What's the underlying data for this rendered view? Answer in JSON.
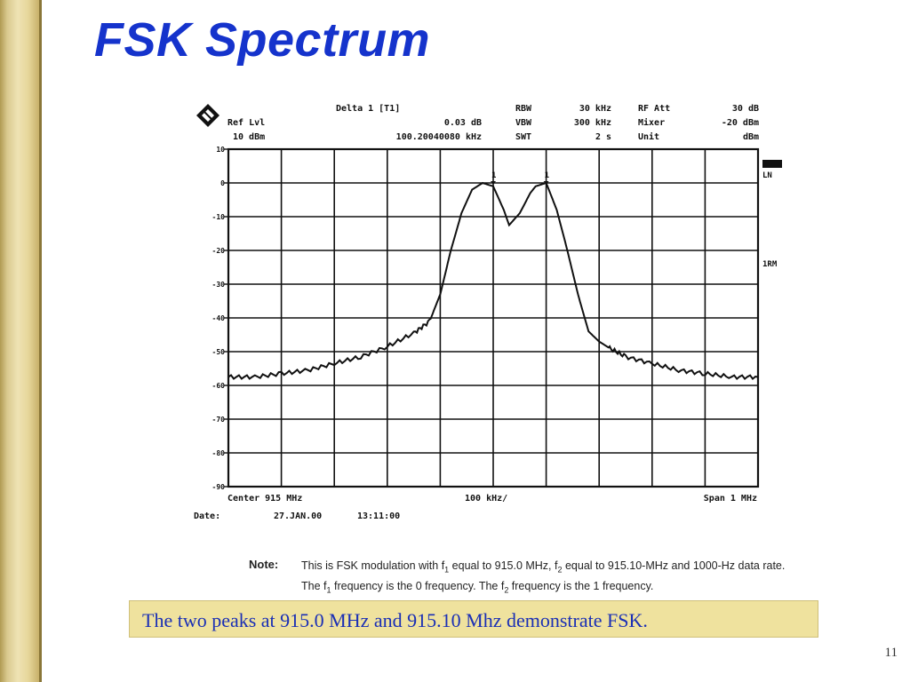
{
  "slide": {
    "title": "FSK Spectrum",
    "page_number": "11",
    "caption": "The two peaks at 915.0 MHz and 915.10 Mhz demonstrate FSK.",
    "colors": {
      "title": "#1533cc",
      "caption_text": "#1a2fb5",
      "caption_bg": "#efe29e",
      "side_bar": "#d9c98e"
    }
  },
  "analyzer": {
    "logo_icon": "rohde-schwarz-logo-icon",
    "header": {
      "marker_title": "Delta 1 [T1]",
      "marker_level": "0.03 dB",
      "marker_freq": "100.20040080 kHz",
      "ref_lvl_label": "Ref Lvl",
      "ref_lvl_value": "10 dBm",
      "rbw_label": "RBW",
      "rbw_value": "30 kHz",
      "vbw_label": "VBW",
      "vbw_value": "300 kHz",
      "swt_label": "SWT",
      "swt_value": "2 s",
      "rf_att_label": "RF Att",
      "rf_att_value": "30 dB",
      "mixer_label": "Mixer",
      "mixer_value": "-20 dBm",
      "unit_label": "Unit",
      "unit_value": "dBm"
    },
    "side_labels": {
      "ln": "LN",
      "trace": "1RM"
    },
    "footer": {
      "center": "Center 915 MHz",
      "div": "100 kHz/",
      "span": "Span 1 MHz",
      "date_label": "Date:",
      "date_value": "27.JAN.00",
      "time_value": "13:11:00"
    },
    "marker_labels": [
      "1",
      "1"
    ]
  },
  "note": {
    "label": "Note:",
    "line1_a": "This is FSK modulation with f",
    "line1_sub1": "1",
    "line1_b": " equal to 915.0 MHz, f",
    "line1_sub2": "2",
    "line1_c": " equal to 915.10-MHz and 1000-Hz data rate.",
    "line2_a": "The f",
    "line2_sub1": "1",
    "line2_b": " frequency is the 0 frequency. The f",
    "line2_sub2": "2",
    "line2_c": " frequency is the 1 frequency."
  },
  "chart_data": {
    "type": "line",
    "xlim": [
      914.5,
      915.5
    ],
    "ylim": [
      -90,
      10
    ],
    "y_ticks": [
      10,
      0,
      -10,
      -20,
      -30,
      -40,
      -50,
      -60,
      -70,
      -80,
      -90
    ],
    "y_tick_labels": [
      "10",
      "0",
      "-10",
      "-20",
      "-30",
      "-40",
      "-50",
      "-60",
      "-70",
      "-80",
      "-90"
    ],
    "grid": true,
    "series": [
      {
        "x": [
          914.5,
          914.55,
          914.6,
          914.65,
          914.7,
          914.75,
          914.8,
          914.85,
          914.88,
          914.9,
          914.92,
          914.94,
          914.96,
          914.98,
          915.0,
          915.02,
          915.03,
          915.05,
          915.07,
          915.08,
          915.1,
          915.12,
          915.14,
          915.16,
          915.18,
          915.2,
          915.22,
          915.25,
          915.3,
          915.35,
          915.4,
          915.45,
          915.5
        ],
        "y": [
          -57.5,
          -57.5,
          -56.5,
          -55.5,
          -53.5,
          -51.5,
          -48.5,
          -44.5,
          -41,
          -33,
          -20,
          -9,
          -2,
          0,
          -1,
          -8,
          -12.5,
          -9,
          -3,
          -1,
          0,
          -8,
          -20,
          -33,
          -44,
          -47,
          -49,
          -51.5,
          -53.5,
          -55.5,
          -56.5,
          -57.5,
          -57.5
        ]
      }
    ]
  }
}
